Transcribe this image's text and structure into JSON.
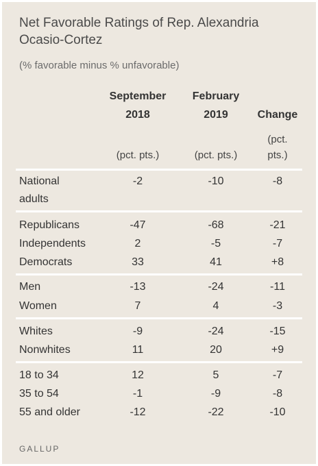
{
  "title": "Net Favorable Ratings of Rep. Alexandria Ocasio-Cortez",
  "subtitle": "(% favorable minus % unfavorable)",
  "columns": [
    {
      "header_line1": "September",
      "header_line2": "2018",
      "unit": "(pct. pts.)"
    },
    {
      "header_line1": "February",
      "header_line2": "2019",
      "unit": "(pct. pts.)"
    },
    {
      "header_line1": "",
      "header_line2": "Change",
      "unit_line1": "(pct.",
      "unit_line2": "pts.)"
    }
  ],
  "groups": [
    {
      "rows": [
        {
          "label_line1": "National",
          "label_line2": "adults",
          "sep2018": "-2",
          "feb2019": "-10",
          "change": "-8"
        }
      ]
    },
    {
      "rows": [
        {
          "label": "Republicans",
          "sep2018": "-47",
          "feb2019": "-68",
          "change": "-21"
        },
        {
          "label": "Independents",
          "sep2018": "2",
          "feb2019": "-5",
          "change": "-7"
        },
        {
          "label": "Democrats",
          "sep2018": "33",
          "feb2019": "41",
          "change": "+8"
        }
      ]
    },
    {
      "rows": [
        {
          "label": "Men",
          "sep2018": "-13",
          "feb2019": "-24",
          "change": "-11"
        },
        {
          "label": "Women",
          "sep2018": "7",
          "feb2019": "4",
          "change": "-3"
        }
      ]
    },
    {
      "rows": [
        {
          "label": "Whites",
          "sep2018": "-9",
          "feb2019": "-24",
          "change": "-15"
        },
        {
          "label": "Nonwhites",
          "sep2018": "11",
          "feb2019": "20",
          "change": "+9"
        }
      ]
    },
    {
      "rows": [
        {
          "label": "18 to 34",
          "sep2018": "12",
          "feb2019": "5",
          "change": "-7"
        },
        {
          "label": "35 to 54",
          "sep2018": "-1",
          "feb2019": "-9",
          "change": "-8"
        },
        {
          "label": "55 and older",
          "sep2018": "-12",
          "feb2019": "-22",
          "change": "-10"
        }
      ]
    }
  ],
  "source": "GALLUP",
  "colors": {
    "background": "#ede8e0",
    "separator": "#ffffff",
    "text": "#333333"
  }
}
